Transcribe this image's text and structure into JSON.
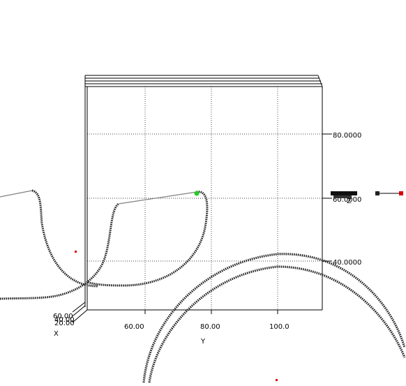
{
  "axes": {
    "y_ticks": [
      "60.00",
      "80.00",
      "100.0"
    ],
    "y_title": "Y",
    "z_ticks": [
      "80.0000",
      "60.0000",
      "40.0000"
    ],
    "z_title": "Z",
    "x_ticks": [
      "60.00",
      "40.00",
      "20.00"
    ],
    "x_title": "X"
  },
  "colors": {
    "grid": "#000000",
    "trajectory": "#222222",
    "connector": "#808080",
    "start_marker": "#22cc22",
    "stray_marker": "#dd0000"
  }
}
